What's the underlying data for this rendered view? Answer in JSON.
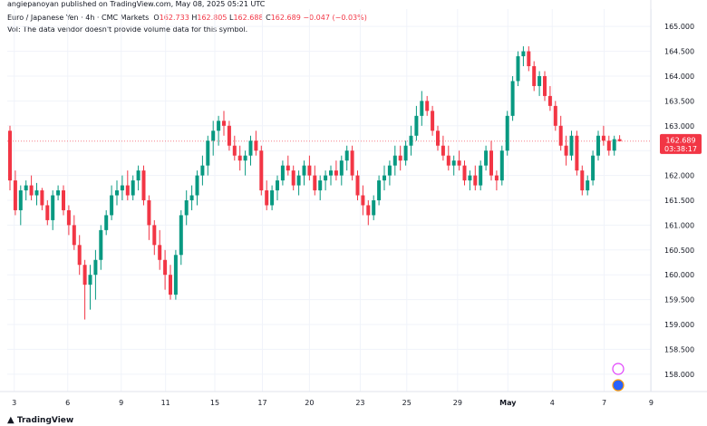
{
  "attribution": "angiepanoyan published on TradingView.com, May 08, 2025 05:21 UTC",
  "header": {
    "symbol": "Euro / Japanese Yen · 4h · CMC Markets",
    "o_label": "O",
    "o_value": "162.733",
    "h_label": "H",
    "h_value": "162.805",
    "l_label": "L",
    "l_value": "162.688",
    "c_label": "C",
    "c_value": "162.689",
    "change": "−0.047 (−0.03%)",
    "volume_note": "Vol: The data vendor doesn't provide volume data for this symbol."
  },
  "price_tag": {
    "price": "162.689",
    "countdown": "03:38:17"
  },
  "footer_brand": "TradingView",
  "colors": {
    "up": "#089981",
    "down": "#f23645",
    "grid": "#f0f3fa",
    "text": "#131722"
  },
  "chart_data": {
    "type": "candlestick",
    "title": "Euro / Japanese Yen · 4h · CMC Markets",
    "ylim": [
      157.65,
      165.35
    ],
    "y_ticks": [
      "165.000",
      "164.500",
      "164.000",
      "163.500",
      "163.000",
      "162.500",
      "162.000",
      "161.500",
      "161.000",
      "160.500",
      "160.000",
      "159.500",
      "159.000",
      "158.500",
      "158.000"
    ],
    "x_tick_labels": [
      "3",
      "6",
      "9",
      "11",
      "15",
      "17",
      "20",
      "23",
      "25",
      "29",
      "May",
      "4",
      "7",
      "9"
    ],
    "x_tick_positions": [
      0.8,
      10.8,
      20.8,
      29.1,
      38.3,
      47.2,
      56.0,
      65.5,
      74.2,
      83.7,
      93.1,
      101.4,
      111.1,
      119.9
    ],
    "last_price": 162.689,
    "candles": [
      [
        162.9,
        163.0,
        161.7,
        161.9
      ],
      [
        161.9,
        162.1,
        161.2,
        161.3
      ],
      [
        161.3,
        161.8,
        161.0,
        161.7
      ],
      [
        161.7,
        161.9,
        161.5,
        161.8
      ],
      [
        161.8,
        162.0,
        161.5,
        161.6
      ],
      [
        161.6,
        161.85,
        161.4,
        161.7
      ],
      [
        161.7,
        161.75,
        161.3,
        161.4
      ],
      [
        161.4,
        161.5,
        161.0,
        161.1
      ],
      [
        161.1,
        161.7,
        160.9,
        161.6
      ],
      [
        161.6,
        161.8,
        161.5,
        161.7
      ],
      [
        161.7,
        161.8,
        161.2,
        161.3
      ],
      [
        161.3,
        161.4,
        160.8,
        161.0
      ],
      [
        161.0,
        161.2,
        160.5,
        160.6
      ],
      [
        160.6,
        160.8,
        160.0,
        160.2
      ],
      [
        160.2,
        160.3,
        159.1,
        159.8
      ],
      [
        159.8,
        160.2,
        159.3,
        160.0
      ],
      [
        160.0,
        160.5,
        159.5,
        160.3
      ],
      [
        160.3,
        161.0,
        160.1,
        160.9
      ],
      [
        160.9,
        161.3,
        160.8,
        161.2
      ],
      [
        161.2,
        161.8,
        161.1,
        161.6
      ],
      [
        161.6,
        161.9,
        161.4,
        161.7
      ],
      [
        161.7,
        162.0,
        161.5,
        161.8
      ],
      [
        161.8,
        162.1,
        161.5,
        161.6
      ],
      [
        161.6,
        162.0,
        161.5,
        161.9
      ],
      [
        161.9,
        162.2,
        161.7,
        162.1
      ],
      [
        162.1,
        162.2,
        161.4,
        161.5
      ],
      [
        161.5,
        161.6,
        160.7,
        161.0
      ],
      [
        161.0,
        161.1,
        160.4,
        160.6
      ],
      [
        160.6,
        160.9,
        160.1,
        160.3
      ],
      [
        160.3,
        160.5,
        159.7,
        160.0
      ],
      [
        160.0,
        160.2,
        159.5,
        159.6
      ],
      [
        159.6,
        160.5,
        159.5,
        160.4
      ],
      [
        160.4,
        161.3,
        160.2,
        161.2
      ],
      [
        161.2,
        161.7,
        161.0,
        161.5
      ],
      [
        161.5,
        161.8,
        161.3,
        161.6
      ],
      [
        161.6,
        162.1,
        161.4,
        162.0
      ],
      [
        162.0,
        162.4,
        161.8,
        162.2
      ],
      [
        162.2,
        162.8,
        162.0,
        162.7
      ],
      [
        162.7,
        163.1,
        162.4,
        162.9
      ],
      [
        162.9,
        163.2,
        162.6,
        163.1
      ],
      [
        163.1,
        163.3,
        162.8,
        163.0
      ],
      [
        163.0,
        163.1,
        162.5,
        162.6
      ],
      [
        162.6,
        162.8,
        162.3,
        162.4
      ],
      [
        162.4,
        162.6,
        162.1,
        162.3
      ],
      [
        162.3,
        162.5,
        162.0,
        162.4
      ],
      [
        162.4,
        162.8,
        162.2,
        162.7
      ],
      [
        162.7,
        162.9,
        162.4,
        162.5
      ],
      [
        162.5,
        162.6,
        161.6,
        161.7
      ],
      [
        161.7,
        161.9,
        161.3,
        161.4
      ],
      [
        161.4,
        161.8,
        161.3,
        161.7
      ],
      [
        161.7,
        162.0,
        161.5,
        161.9
      ],
      [
        161.9,
        162.3,
        161.8,
        162.2
      ],
      [
        162.2,
        162.4,
        162.0,
        162.1
      ],
      [
        162.1,
        162.2,
        161.7,
        161.8
      ],
      [
        161.8,
        162.1,
        161.6,
        162.0
      ],
      [
        162.0,
        162.3,
        161.8,
        162.2
      ],
      [
        162.2,
        162.4,
        161.9,
        162.0
      ],
      [
        162.0,
        162.2,
        161.6,
        161.7
      ],
      [
        161.7,
        162.0,
        161.5,
        161.9
      ],
      [
        161.9,
        162.1,
        161.7,
        162.0
      ],
      [
        162.0,
        162.2,
        161.8,
        162.1
      ],
      [
        162.1,
        162.3,
        161.9,
        162.0
      ],
      [
        162.0,
        162.4,
        161.8,
        162.3
      ],
      [
        162.3,
        162.6,
        162.1,
        162.5
      ],
      [
        162.5,
        162.6,
        161.9,
        162.0
      ],
      [
        162.0,
        162.1,
        161.5,
        161.6
      ],
      [
        161.6,
        161.8,
        161.2,
        161.4
      ],
      [
        161.4,
        161.5,
        161.0,
        161.2
      ],
      [
        161.2,
        161.6,
        161.1,
        161.5
      ],
      [
        161.5,
        162.0,
        161.4,
        161.9
      ],
      [
        161.9,
        162.2,
        161.7,
        162.0
      ],
      [
        162.0,
        162.3,
        161.8,
        162.2
      ],
      [
        162.2,
        162.6,
        162.0,
        162.4
      ],
      [
        162.4,
        162.6,
        162.1,
        162.3
      ],
      [
        162.3,
        162.7,
        162.2,
        162.6
      ],
      [
        162.6,
        163.0,
        162.4,
        162.8
      ],
      [
        162.8,
        163.4,
        162.7,
        163.2
      ],
      [
        163.2,
        163.7,
        163.0,
        163.5
      ],
      [
        163.5,
        163.6,
        163.2,
        163.3
      ],
      [
        163.3,
        163.4,
        162.8,
        162.9
      ],
      [
        162.9,
        163.0,
        162.5,
        162.6
      ],
      [
        162.6,
        162.8,
        162.3,
        162.4
      ],
      [
        162.4,
        162.6,
        162.1,
        162.2
      ],
      [
        162.2,
        162.4,
        162.0,
        162.3
      ],
      [
        162.3,
        162.5,
        162.1,
        162.2
      ],
      [
        162.2,
        162.3,
        161.8,
        161.9
      ],
      [
        161.9,
        162.1,
        161.7,
        162.0
      ],
      [
        162.0,
        162.2,
        161.7,
        161.8
      ],
      [
        161.8,
        162.3,
        161.7,
        162.2
      ],
      [
        162.2,
        162.6,
        162.1,
        162.5
      ],
      [
        162.5,
        162.7,
        161.9,
        162.0
      ],
      [
        162.0,
        162.1,
        161.7,
        161.9
      ],
      [
        161.9,
        162.6,
        161.8,
        162.5
      ],
      [
        162.5,
        163.3,
        162.4,
        163.2
      ],
      [
        163.2,
        164.0,
        163.1,
        163.9
      ],
      [
        163.9,
        164.5,
        163.8,
        164.4
      ],
      [
        164.4,
        164.6,
        164.2,
        164.5
      ],
      [
        164.5,
        164.6,
        164.1,
        164.2
      ],
      [
        164.2,
        164.3,
        163.7,
        163.8
      ],
      [
        163.8,
        164.1,
        163.6,
        164.0
      ],
      [
        164.0,
        164.1,
        163.5,
        163.6
      ],
      [
        163.6,
        163.8,
        163.3,
        163.4
      ],
      [
        163.4,
        163.5,
        162.9,
        163.0
      ],
      [
        163.0,
        163.2,
        162.5,
        162.6
      ],
      [
        162.6,
        162.8,
        162.2,
        162.4
      ],
      [
        162.4,
        162.9,
        162.3,
        162.8
      ],
      [
        162.8,
        162.9,
        162.0,
        162.1
      ],
      [
        162.1,
        162.2,
        161.6,
        161.7
      ],
      [
        161.7,
        162.0,
        161.6,
        161.9
      ],
      [
        161.9,
        162.5,
        161.8,
        162.4
      ],
      [
        162.4,
        162.9,
        162.3,
        162.8
      ],
      [
        162.8,
        163.0,
        162.6,
        162.7
      ],
      [
        162.7,
        162.8,
        162.4,
        162.5
      ],
      [
        162.5,
        162.8,
        162.4,
        162.73
      ],
      [
        162.73,
        162.81,
        162.69,
        162.689
      ]
    ]
  }
}
